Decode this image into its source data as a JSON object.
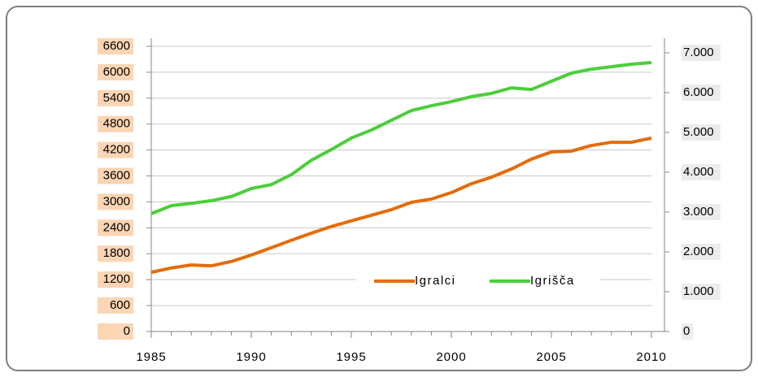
{
  "chart_data": {
    "type": "line",
    "x": [
      1985,
      1986,
      1987,
      1988,
      1989,
      1990,
      1991,
      1992,
      1993,
      1994,
      1995,
      1996,
      1997,
      1998,
      1999,
      2000,
      2001,
      2002,
      2003,
      2004,
      2005,
      2006,
      2007,
      2008,
      2009,
      2010
    ],
    "series": [
      {
        "name": "Igralci",
        "color": "#e46c0a",
        "values": [
          1370,
          1470,
          1540,
          1520,
          1620,
          1770,
          1940,
          2110,
          2275,
          2430,
          2560,
          2690,
          2820,
          2990,
          3065,
          3215,
          3420,
          3570,
          3760,
          3990,
          4155,
          4175,
          4305,
          4380,
          4380,
          4475
        ]
      },
      {
        "name": "Igrišča",
        "color": "#4cce3a",
        "axis": "y2",
        "values": [
          2960,
          3160,
          3220,
          3285,
          3390,
          3590,
          3690,
          3940,
          4300,
          4570,
          4860,
          5060,
          5305,
          5550,
          5670,
          5775,
          5900,
          5980,
          6120,
          6080,
          6285,
          6490,
          6590,
          6650,
          6715,
          6755
        ]
      }
    ],
    "xlim": [
      1985,
      2010
    ],
    "xticks": [
      1985,
      1990,
      1995,
      2000,
      2005,
      2010
    ],
    "ylim": [
      0,
      6600
    ],
    "yticks": [
      0,
      600,
      1200,
      1800,
      2400,
      3000,
      3600,
      4200,
      4800,
      5400,
      6000,
      6600
    ],
    "y2lim": [
      0,
      7000
    ],
    "y2ticks": [
      0,
      {
        "value": 1000,
        "label": "1.000"
      },
      {
        "value": 2000,
        "label": "2.000"
      },
      {
        "value": 3000,
        "label": "3.000"
      },
      {
        "value": 4000,
        "label": "4.000"
      },
      {
        "value": 5000,
        "label": "5.000"
      },
      {
        "value": 6000,
        "label": "6.000"
      },
      {
        "value": 7000,
        "label": "7.000"
      }
    ],
    "grid": true
  }
}
